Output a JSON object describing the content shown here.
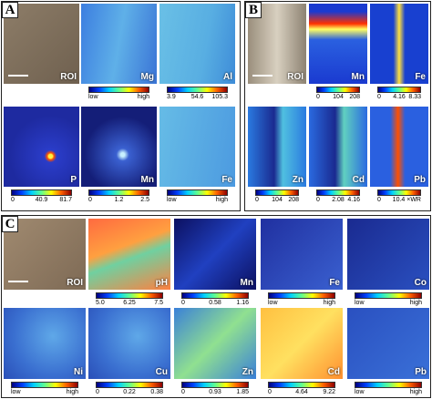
{
  "panels": [
    {
      "letter": "A",
      "maps": [
        {
          "label": "ROI"
        },
        {
          "label": "Mg",
          "scale": [
            "low",
            "high"
          ]
        },
        {
          "label": "Al",
          "scale": [
            "3.9",
            "54.6",
            "105.3"
          ]
        },
        {
          "label": "P",
          "scale": [
            "0",
            "40.9",
            "81.7"
          ]
        },
        {
          "label": "Mn",
          "scale": [
            "0",
            "1.2",
            "2.5"
          ]
        },
        {
          "label": "Fe",
          "scale": [
            "low",
            "high"
          ]
        }
      ]
    },
    {
      "letter": "B",
      "maps": [
        {
          "label": "ROI"
        },
        {
          "label": "Mn",
          "scale": [
            "0",
            "104",
            "208"
          ]
        },
        {
          "label": "Fe",
          "scale": [
            "0",
            "4.16",
            "8.33"
          ]
        },
        {
          "label": "Zn",
          "scale": [
            "0",
            "104",
            "208"
          ]
        },
        {
          "label": "Cd",
          "scale": [
            "0",
            "2.08",
            "4.16"
          ]
        },
        {
          "label": "Pb",
          "scale": [
            "0",
            "10.4 ×WR"
          ]
        }
      ]
    },
    {
      "letter": "C",
      "maps": [
        {
          "label": "ROI"
        },
        {
          "label": "pH",
          "scale": [
            "5.0",
            "6.25",
            "7.5"
          ]
        },
        {
          "label": "Mn",
          "scale": [
            "0",
            "0.58",
            "1.16"
          ]
        },
        {
          "label": "Fe",
          "scale": [
            "low",
            "high"
          ]
        },
        {
          "label": "Co",
          "scale": [
            "low",
            "high"
          ]
        },
        {
          "label": "Ni",
          "scale": [
            "low",
            "high"
          ]
        },
        {
          "label": "Cu",
          "scale": [
            "0",
            "0.22",
            "0.38"
          ]
        },
        {
          "label": "Zn",
          "scale": [
            "0",
            "0.93",
            "1.85"
          ]
        },
        {
          "label": "Cd",
          "scale": [
            "0",
            "4.64",
            "9.22"
          ]
        },
        {
          "label": "Pb",
          "scale": [
            "low",
            "high"
          ]
        }
      ]
    }
  ]
}
